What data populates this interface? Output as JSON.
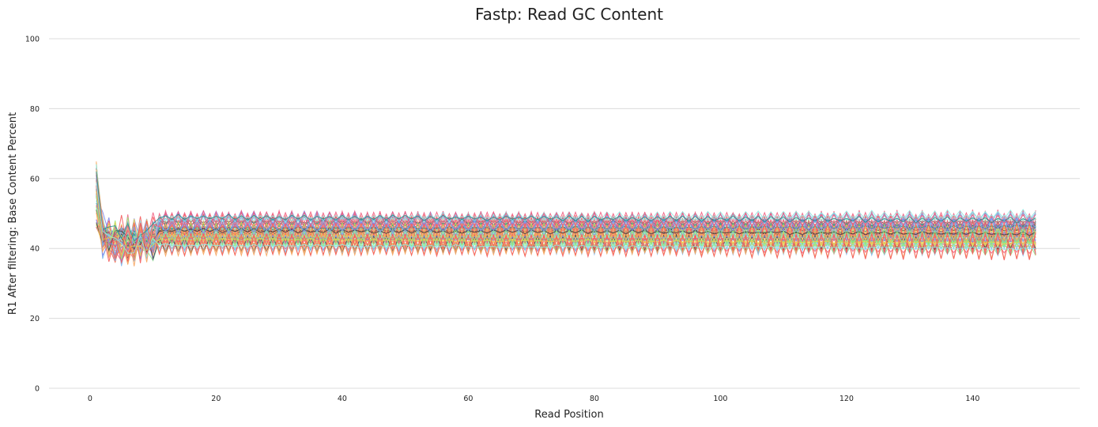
{
  "chart_data": {
    "type": "line",
    "title": "Fastp: Read GC Content",
    "xlabel": "Read Position",
    "ylabel": "R1 After filtering: Base Content Percent",
    "xlim": [
      -6.5,
      157
    ],
    "ylim": [
      0,
      100
    ],
    "x_ticks": [
      0,
      20,
      40,
      60,
      80,
      100,
      120,
      140
    ],
    "y_ticks": [
      0,
      20,
      40,
      60,
      80,
      100
    ],
    "grid": "horizontal",
    "legend": "none",
    "x_range": [
      1,
      150
    ],
    "series_count": 60,
    "series_profile": {
      "start_range": [
        46,
        65
      ],
      "plateau_range": [
        39.5,
        49
      ],
      "oscillation_amplitude_range": [
        0.2,
        7
      ],
      "oscillation_period": 2,
      "description": "per-sample GC % lines; high at position 1, dip near 38-40 at positions 2-9, then oscillating plateau"
    },
    "palette": [
      "#7cb5ec",
      "#434348",
      "#90ed7d",
      "#f7a35c",
      "#8085e9",
      "#f15c80",
      "#e4d354",
      "#2b908f",
      "#f45b5b",
      "#91e8e1"
    ]
  }
}
